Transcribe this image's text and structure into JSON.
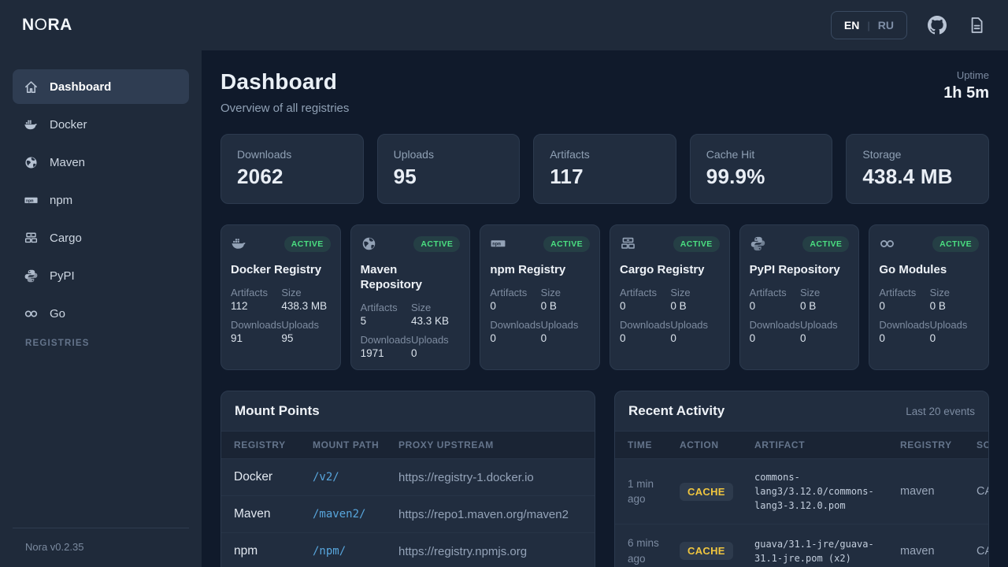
{
  "navbar": {
    "logo_n": "N",
    "logo_o": "O",
    "logo_ra": "RA",
    "lang_en": "EN",
    "lang_divider": "|",
    "lang_ru": "RU"
  },
  "sidebar": {
    "items": [
      {
        "label": "Dashboard",
        "icon": "home-icon",
        "active": true
      },
      {
        "label": "Docker",
        "icon": "docker-icon"
      },
      {
        "label": "Maven",
        "icon": "globe-icon"
      },
      {
        "label": "npm",
        "icon": "npm-icon"
      },
      {
        "label": "Cargo",
        "icon": "cargo-icon"
      },
      {
        "label": "PyPI",
        "icon": "python-icon"
      },
      {
        "label": "Go",
        "icon": "go-icon"
      }
    ],
    "section_label": "REGISTRIES",
    "footer": "Nora v0.2.35"
  },
  "header": {
    "title": "Dashboard",
    "subtitle": "Overview of all registries",
    "uptime_label": "Uptime",
    "uptime_value": "1h 5m"
  },
  "stats": [
    {
      "label": "Downloads",
      "value": "2062"
    },
    {
      "label": "Uploads",
      "value": "95"
    },
    {
      "label": "Artifacts",
      "value": "117"
    },
    {
      "label": "Cache Hit",
      "value": "99.9%"
    },
    {
      "label": "Storage",
      "value": "438.4 MB"
    }
  ],
  "registry_card_labels": {
    "artifacts": "Artifacts",
    "size": "Size",
    "downloads": "Downloads",
    "uploads": "Uploads"
  },
  "registries": [
    {
      "name": "Docker Registry",
      "icon": "docker-icon",
      "status": "ACTIVE",
      "artifacts": "112",
      "size": "438.3 MB",
      "downloads": "91",
      "uploads": "95"
    },
    {
      "name": "Maven Repository",
      "icon": "globe-icon",
      "status": "ACTIVE",
      "artifacts": "5",
      "size": "43.3 KB",
      "downloads": "1971",
      "uploads": "0"
    },
    {
      "name": "npm Registry",
      "icon": "npm-icon",
      "status": "ACTIVE",
      "artifacts": "0",
      "size": "0 B",
      "downloads": "0",
      "uploads": "0"
    },
    {
      "name": "Cargo Registry",
      "icon": "cargo-icon",
      "status": "ACTIVE",
      "artifacts": "0",
      "size": "0 B",
      "downloads": "0",
      "uploads": "0"
    },
    {
      "name": "PyPI Repository",
      "icon": "python-icon",
      "status": "ACTIVE",
      "artifacts": "0",
      "size": "0 B",
      "downloads": "0",
      "uploads": "0"
    },
    {
      "name": "Go Modules",
      "icon": "go-icon",
      "status": "ACTIVE",
      "artifacts": "0",
      "size": "0 B",
      "downloads": "0",
      "uploads": "0"
    }
  ],
  "mount_points": {
    "title": "Mount Points",
    "columns": [
      "Registry",
      "Mount Path",
      "Proxy Upstream"
    ],
    "rows": [
      [
        "Docker",
        "/v2/",
        "https://registry-1.docker.io"
      ],
      [
        "Maven",
        "/maven2/",
        "https://repo1.maven.org/maven2"
      ],
      [
        "npm",
        "/npm/",
        "https://registry.npmjs.org"
      ]
    ]
  },
  "recent_activity": {
    "title": "Recent Activity",
    "subtitle": "Last 20 events",
    "columns": [
      "Time",
      "Action",
      "Artifact",
      "Registry",
      "Source"
    ],
    "rows": [
      {
        "time": "1 min ago",
        "action": "CACHE",
        "artifact": "commons-lang3/3.12.0/commons-lang3-3.12.0.pom",
        "registry": "maven",
        "source": "CACHE"
      },
      {
        "time": "6 mins ago",
        "action": "CACHE",
        "artifact": "guava/31.1-jre/guava-31.1-jre.pom (x2)",
        "registry": "maven",
        "source": "CACHE"
      }
    ]
  },
  "colors": {
    "accent_blue": "#58a6dd",
    "status_green": "#4ade80",
    "action_yellow": "#f0c63f"
  }
}
